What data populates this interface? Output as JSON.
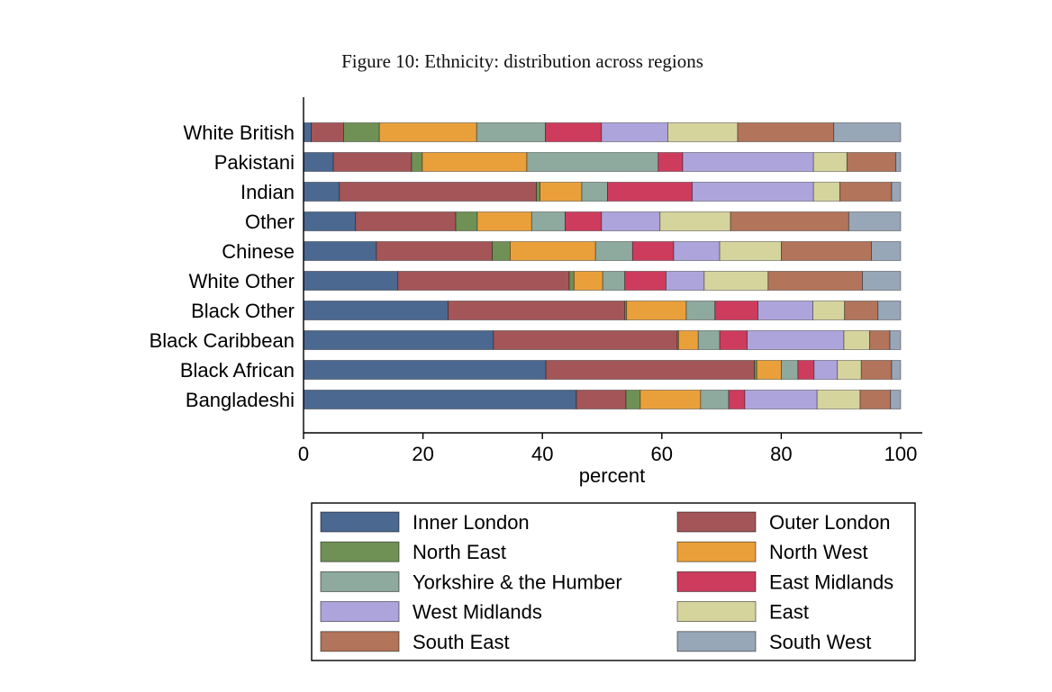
{
  "figure": {
    "caption": "Figure 10: Ethnicity: distribution across regions"
  },
  "chart_data": {
    "type": "bar",
    "orientation": "horizontal",
    "stacked": true,
    "title": "Figure 10: Ethnicity: distribution across regions",
    "xlabel": "percent",
    "ylabel": "",
    "xlim": [
      0,
      100
    ],
    "xticks": [
      0,
      20,
      40,
      60,
      80,
      100
    ],
    "categories": [
      "White British",
      "Pakistani",
      "Indian",
      "Other",
      "Chinese",
      "White Other",
      "Black Other",
      "Black Caribbean",
      "Black African",
      "Bangladeshi"
    ],
    "series": [
      {
        "name": "Inner London",
        "color": "#4a6890",
        "values": [
          1.3,
          5.0,
          6.0,
          8.7,
          12.2,
          15.8,
          24.2,
          31.8,
          40.6,
          45.7
        ]
      },
      {
        "name": "Outer London",
        "color": "#a45558",
        "values": [
          5.4,
          13.1,
          33.0,
          16.8,
          19.4,
          28.7,
          29.6,
          30.8,
          34.9,
          8.3
        ]
      },
      {
        "name": "North East",
        "color": "#6f9155",
        "values": [
          6.0,
          1.8,
          0.6,
          3.6,
          3.0,
          0.8,
          0.3,
          0.2,
          0.4,
          2.4
        ]
      },
      {
        "name": "North West",
        "color": "#eaa03a",
        "values": [
          16.3,
          17.5,
          7.0,
          9.1,
          14.3,
          4.8,
          10.0,
          3.3,
          4.1,
          10.1
        ]
      },
      {
        "name": "Yorkshire & the Humber",
        "color": "#8ea99e",
        "values": [
          11.5,
          22.0,
          4.3,
          5.6,
          6.2,
          3.7,
          4.8,
          3.6,
          2.8,
          4.7
        ]
      },
      {
        "name": "East Midlands",
        "color": "#cd3c5d",
        "values": [
          9.4,
          4.1,
          14.2,
          6.1,
          6.9,
          6.9,
          7.2,
          4.6,
          2.7,
          2.7
        ]
      },
      {
        "name": "West Midlands",
        "color": "#aea4dc",
        "values": [
          11.1,
          21.9,
          20.3,
          9.8,
          7.7,
          6.4,
          9.2,
          16.2,
          3.9,
          12.1
        ]
      },
      {
        "name": "East",
        "color": "#d6d49d",
        "values": [
          11.7,
          5.6,
          4.4,
          11.8,
          10.3,
          10.7,
          5.3,
          4.3,
          4.0,
          7.2
        ]
      },
      {
        "name": "South East",
        "color": "#b2745a",
        "values": [
          16.1,
          8.2,
          8.7,
          19.8,
          15.1,
          15.8,
          5.6,
          3.4,
          5.1,
          5.1
        ]
      },
      {
        "name": "South West",
        "color": "#98a7b8",
        "values": [
          11.2,
          0.8,
          1.5,
          8.7,
          4.9,
          6.4,
          3.8,
          1.8,
          1.5,
          1.7
        ]
      }
    ],
    "legend": {
      "placement": "bottom",
      "columns": 2,
      "order": [
        "Inner London",
        "Outer London",
        "North East",
        "North West",
        "Yorkshire & the Humber",
        "East Midlands",
        "West Midlands",
        "East",
        "South East",
        "South West"
      ]
    }
  }
}
